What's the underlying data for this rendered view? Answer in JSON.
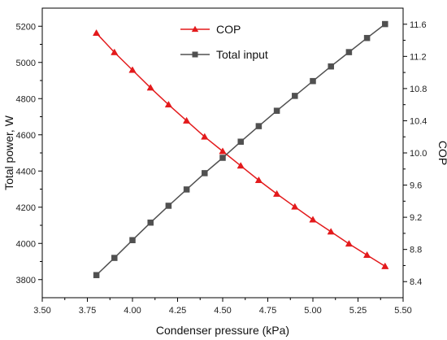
{
  "chart_data": {
    "type": "line",
    "xlabel": "Condenser pressure (kPa)",
    "ylabel_left": "Total power, W",
    "ylabel_right": "COP",
    "xlim": [
      3.5,
      5.5
    ],
    "ylim_left": [
      3700,
      5300
    ],
    "ylim_right": [
      8.2,
      11.8
    ],
    "x_ticks": [
      "3.50",
      "3.75",
      "4.00",
      "4.25",
      "4.50",
      "4.75",
      "5.00",
      "5.25",
      "5.50"
    ],
    "y_left_ticks": [
      "3800",
      "4000",
      "4200",
      "4400",
      "4600",
      "4800",
      "5000",
      "5200"
    ],
    "y_right_ticks": [
      "8.4",
      "8.8",
      "9.2",
      "9.6",
      "10.0",
      "10.4",
      "10.8",
      "11.2",
      "11.6"
    ],
    "x": [
      3.8,
      3.9,
      4.0,
      4.1,
      4.2,
      4.3,
      4.4,
      4.5,
      4.6,
      4.7,
      4.8,
      4.9,
      5.0,
      5.1,
      5.2,
      5.3,
      5.4
    ],
    "series": [
      {
        "name": "COP",
        "axis": "right",
        "color": "#e31a1c",
        "marker": "triangle",
        "values": [
          11.49,
          11.25,
          11.03,
          10.81,
          10.6,
          10.4,
          10.2,
          10.02,
          9.84,
          9.66,
          9.49,
          9.33,
          9.17,
          9.02,
          8.87,
          8.73,
          8.59
        ]
      },
      {
        "name": "Total input",
        "axis": "left",
        "color": "#505050",
        "marker": "square",
        "values": [
          3825,
          3920,
          4018,
          4115,
          4208,
          4298,
          4388,
          4473,
          4562,
          4648,
          4733,
          4815,
          4897,
          4978,
          5057,
          5135,
          5212
        ]
      }
    ],
    "legend_position": "top-center"
  }
}
